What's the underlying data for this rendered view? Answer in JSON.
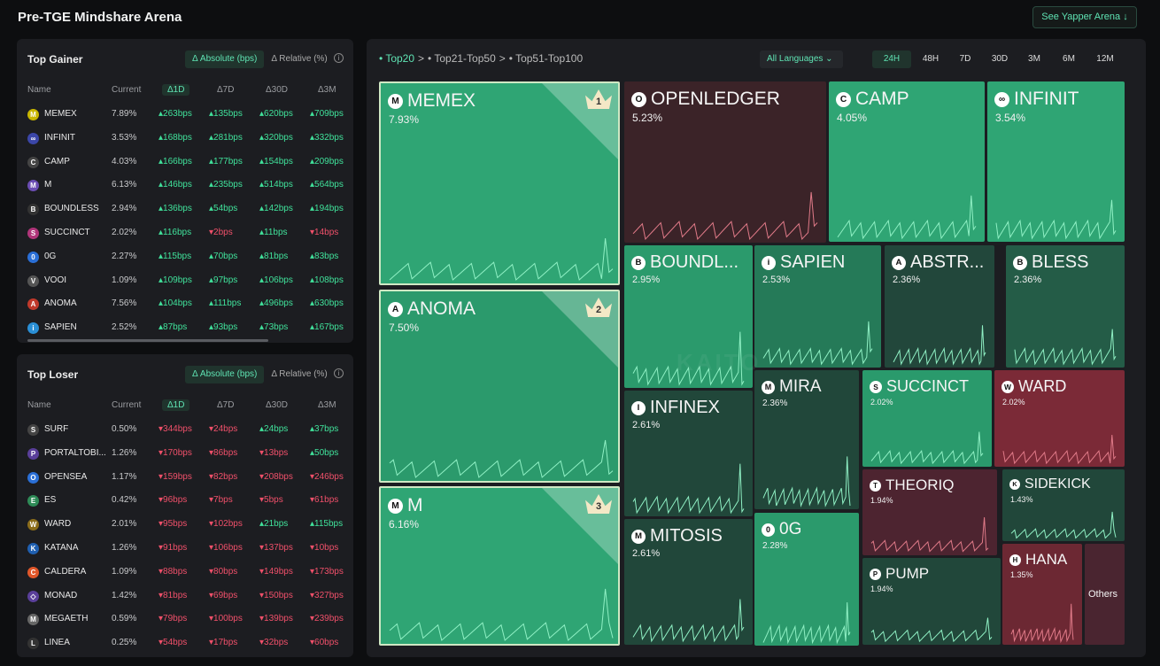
{
  "header": {
    "title": "Pre-TGE Mindshare Arena",
    "yapper_button": "See Yapper Arena ↓"
  },
  "top_gainer": {
    "title": "Top Gainer",
    "toggle_abs": "Δ Absolute (bps)",
    "toggle_rel": "Δ Relative (%)",
    "info": "i",
    "cols": {
      "name": "Name",
      "current": "Current",
      "d1": "Δ1D",
      "d7": "Δ7D",
      "d30": "Δ30D",
      "d3m": "Δ3M"
    },
    "rows": [
      {
        "icon": "M",
        "name": "MEMEX",
        "cur": "7.89%",
        "d1": "▴263bps",
        "d7": "▴135bps",
        "d30": "▴620bps",
        "d3m": "▴709bps"
      },
      {
        "icon": "∞",
        "name": "INFINIT",
        "cur": "3.53%",
        "d1": "▴168bps",
        "d7": "▴281bps",
        "d30": "▴320bps",
        "d3m": "▴332bps"
      },
      {
        "icon": "C",
        "name": "CAMP",
        "cur": "4.03%",
        "d1": "▴166bps",
        "d7": "▴177bps",
        "d30": "▴154bps",
        "d3m": "▴209bps"
      },
      {
        "icon": "M",
        "name": "M",
        "cur": "6.13%",
        "d1": "▴146bps",
        "d7": "▴235bps",
        "d30": "▴514bps",
        "d3m": "▴564bps"
      },
      {
        "icon": "B",
        "name": "BOUNDLESS",
        "cur": "2.94%",
        "d1": "▴136bps",
        "d7": "▴54bps",
        "d30": "▴142bps",
        "d3m": "▴194bps"
      },
      {
        "icon": "S",
        "name": "SUCCINCT",
        "cur": "2.02%",
        "d1": "▴116bps",
        "d7": "▾2bps",
        "d30": "▴11bps",
        "d3m": "▾14bps"
      },
      {
        "icon": "0",
        "name": "0G",
        "cur": "2.27%",
        "d1": "▴115bps",
        "d7": "▴70bps",
        "d30": "▴81bps",
        "d3m": "▴83bps"
      },
      {
        "icon": "V",
        "name": "VOOI",
        "cur": "1.09%",
        "d1": "▴109bps",
        "d7": "▴97bps",
        "d30": "▴106bps",
        "d3m": "▴108bps"
      },
      {
        "icon": "A",
        "name": "ANOMA",
        "cur": "7.56%",
        "d1": "▴104bps",
        "d7": "▴111bps",
        "d30": "▴496bps",
        "d3m": "▴630bps"
      },
      {
        "icon": "i",
        "name": "SAPIEN",
        "cur": "2.52%",
        "d1": "▴87bps",
        "d7": "▴93bps",
        "d30": "▴73bps",
        "d3m": "▴167bps"
      }
    ]
  },
  "top_loser": {
    "title": "Top Loser",
    "toggle_abs": "Δ Absolute (bps)",
    "toggle_rel": "Δ Relative (%)",
    "info": "i",
    "cols": {
      "name": "Name",
      "current": "Current",
      "d1": "Δ1D",
      "d7": "Δ7D",
      "d30": "Δ30D",
      "d3m": "Δ3M"
    },
    "rows": [
      {
        "icon": "S",
        "name": "SURF",
        "cur": "0.50%",
        "d1": "▾344bps",
        "d7": "▾24bps",
        "d30": "▴24bps",
        "d3m": "▴37bps"
      },
      {
        "icon": "P",
        "name": "PORTALTOBI...",
        "cur": "1.26%",
        "d1": "▾170bps",
        "d7": "▾86bps",
        "d30": "▾13bps",
        "d3m": "▴50bps"
      },
      {
        "icon": "O",
        "name": "OPENSEA",
        "cur": "1.17%",
        "d1": "▾159bps",
        "d7": "▾82bps",
        "d30": "▾208bps",
        "d3m": "▾246bps"
      },
      {
        "icon": "E",
        "name": "ES",
        "cur": "0.42%",
        "d1": "▾96bps",
        "d7": "▾7bps",
        "d30": "▾5bps",
        "d3m": "▾61bps"
      },
      {
        "icon": "W",
        "name": "WARD",
        "cur": "2.01%",
        "d1": "▾95bps",
        "d7": "▾102bps",
        "d30": "▴21bps",
        "d3m": "▴115bps"
      },
      {
        "icon": "K",
        "name": "KATANA",
        "cur": "1.26%",
        "d1": "▾91bps",
        "d7": "▾106bps",
        "d30": "▾137bps",
        "d3m": "▾10bps"
      },
      {
        "icon": "C",
        "name": "CALDERA",
        "cur": "1.09%",
        "d1": "▾88bps",
        "d7": "▾80bps",
        "d30": "▾149bps",
        "d3m": "▾173bps"
      },
      {
        "icon": "◇",
        "name": "MONAD",
        "cur": "1.42%",
        "d1": "▾81bps",
        "d7": "▾69bps",
        "d30": "▾150bps",
        "d3m": "▾327bps"
      },
      {
        "icon": "M",
        "name": "MEGAETH",
        "cur": "0.59%",
        "d1": "▾79bps",
        "d7": "▾100bps",
        "d30": "▾139bps",
        "d3m": "▾239bps"
      },
      {
        "icon": "L",
        "name": "LINEA",
        "cur": "0.25%",
        "d1": "▾54bps",
        "d7": "▾17bps",
        "d30": "▾32bps",
        "d3m": "▾60bps"
      }
    ]
  },
  "treemap": {
    "crumbs": [
      "• Top20",
      ">",
      "• Top21-Top50",
      ">",
      "• Top51-Top100"
    ],
    "language": "All Languages ⌄",
    "timeframes": [
      "24H",
      "48H",
      "7D",
      "30D",
      "3M",
      "6M",
      "12M"
    ],
    "active_timeframe": "24H",
    "watermark": "KAITO",
    "tiles": [
      {
        "name": "MEMEX",
        "pct": "7.93%",
        "icon": "M",
        "rank": "1",
        "color": "#2fa574"
      },
      {
        "name": "ANOMA",
        "pct": "7.50%",
        "icon": "A",
        "rank": "2",
        "color": "#2b9a6c"
      },
      {
        "name": "M",
        "pct": "6.16%",
        "icon": "M",
        "rank": "3",
        "color": "#2fa574"
      },
      {
        "name": "OPENLEDGER",
        "pct": "5.23%",
        "icon": "O",
        "color": "#3b2328"
      },
      {
        "name": "CAMP",
        "pct": "4.05%",
        "icon": "C",
        "color": "#2fa574"
      },
      {
        "name": "INFINIT",
        "pct": "3.54%",
        "icon": "∞",
        "color": "#2fa574"
      },
      {
        "name": "BOUNDL...",
        "pct": "2.95%",
        "icon": "B",
        "color": "#2b9a6c"
      },
      {
        "name": "SAPIEN",
        "pct": "2.53%",
        "icon": "i",
        "color": "#257a58"
      },
      {
        "name": "ABSTR...",
        "pct": "2.36%",
        "icon": "A",
        "color": "#22473b"
      },
      {
        "name": "BLESS",
        "pct": "2.36%",
        "icon": "B",
        "color": "#245c47"
      },
      {
        "name": "INFINEX",
        "pct": "2.61%",
        "icon": "I",
        "color": "#21473a"
      },
      {
        "name": "MIRA",
        "pct": "2.36%",
        "icon": "M",
        "color": "#21473a"
      },
      {
        "name": "SUCCINCT",
        "pct": "2.02%",
        "icon": "S",
        "color": "#2a9a6c"
      },
      {
        "name": "WARD",
        "pct": "2.02%",
        "icon": "W",
        "color": "#7b2a37"
      },
      {
        "name": "THEORIQ",
        "pct": "1.94%",
        "icon": "T",
        "color": "#4d2430"
      },
      {
        "name": "SIDEKICK",
        "pct": "1.43%",
        "icon": "K",
        "color": "#21473a"
      },
      {
        "name": "MITOSIS",
        "pct": "2.61%",
        "icon": "M",
        "color": "#21473a"
      },
      {
        "name": "0G",
        "pct": "2.28%",
        "icon": "0",
        "color": "#2b9a6c"
      },
      {
        "name": "PUMP",
        "pct": "1.94%",
        "icon": "P",
        "color": "#21473a"
      },
      {
        "name": "HANA",
        "pct": "1.35%",
        "icon": "H",
        "color": "#6c2833"
      },
      {
        "name": "Others",
        "color": "#4a2530"
      }
    ]
  }
}
